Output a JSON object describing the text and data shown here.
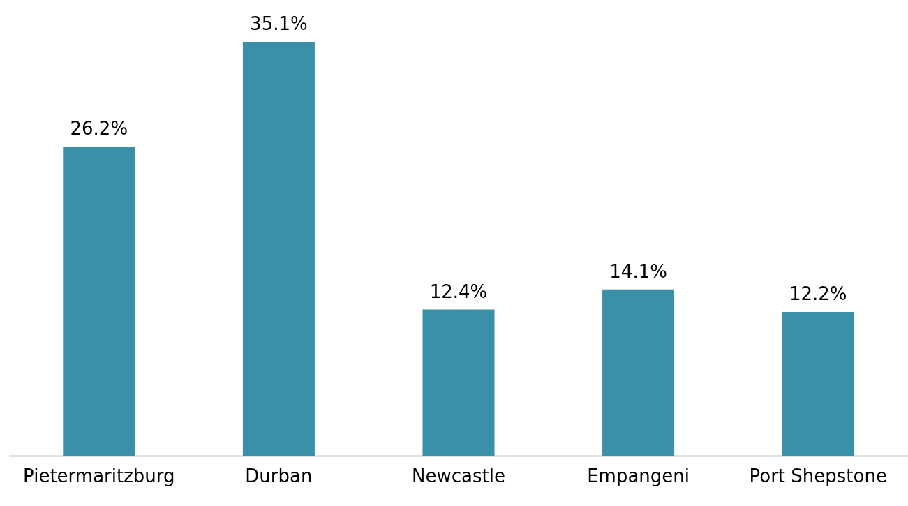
{
  "chart_data": {
    "type": "bar",
    "categories": [
      "Pietermaritzburg",
      "Durban",
      "Newcastle",
      "Empangeni",
      "Port Shepstone"
    ],
    "values": [
      26.2,
      35.1,
      12.4,
      14.1,
      12.2
    ],
    "color": "#3a91a7",
    "value_labels": [
      "26.2%",
      "35.1%",
      "12.4%",
      "14.1%",
      "12.2%"
    ]
  }
}
